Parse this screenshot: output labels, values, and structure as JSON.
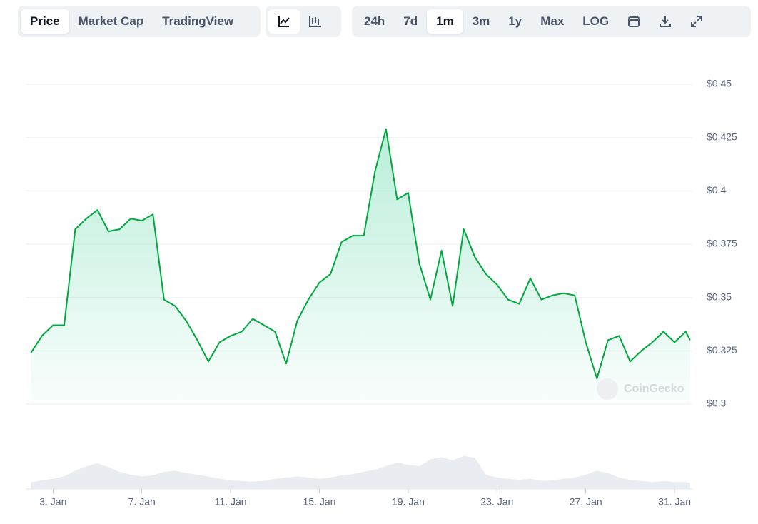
{
  "toolbar": {
    "views": [
      "Price",
      "Market Cap",
      "TradingView"
    ],
    "ranges": [
      "24h",
      "7d",
      "1m",
      "3m",
      "1y",
      "Max",
      "LOG"
    ]
  },
  "chart_data": {
    "type": "line",
    "watermark": "CoinGecko",
    "x": [
      2,
      2.5,
      3,
      3.5,
      4,
      4.5,
      5,
      5.5,
      6,
      6.5,
      7,
      7.5,
      8,
      8.5,
      9,
      9.5,
      10,
      10.5,
      11,
      11.5,
      12,
      12.5,
      13,
      13.5,
      14,
      14.5,
      15,
      15.5,
      16,
      16.5,
      17,
      17.5,
      18,
      18.5,
      19,
      19.5,
      20,
      20.5,
      21,
      21.5,
      22,
      22.5,
      23,
      23.5,
      24,
      24.5,
      25,
      25.5,
      26,
      26.5,
      27,
      27.5,
      28,
      28.5,
      29,
      29.5,
      30,
      30.5,
      31,
      31.5,
      31.7
    ],
    "series": [
      {
        "color": "#00a83e",
        "values": [
          0.324,
          0.332,
          0.337,
          0.337,
          0.382,
          0.387,
          0.391,
          0.381,
          0.382,
          0.387,
          0.386,
          0.389,
          0.349,
          0.346,
          0.339,
          0.33,
          0.32,
          0.329,
          0.332,
          0.334,
          0.34,
          0.337,
          0.334,
          0.319,
          0.339,
          0.349,
          0.357,
          0.361,
          0.376,
          0.379,
          0.379,
          0.409,
          0.429,
          0.396,
          0.399,
          0.366,
          0.349,
          0.372,
          0.346,
          0.382,
          0.369,
          0.361,
          0.356,
          0.349,
          0.347,
          0.359,
          0.349,
          0.351,
          0.352,
          0.351,
          0.329,
          0.312,
          0.33,
          0.332,
          0.32,
          0.325,
          0.329,
          0.334,
          0.329,
          0.334,
          0.33
        ]
      },
      {
        "color": "#e9ecf0",
        "axis": "y2",
        "values": [
          12,
          15,
          18,
          22,
          32,
          40,
          45,
          38,
          30,
          25,
          22,
          24,
          30,
          32,
          28,
          25,
          22,
          18,
          15,
          14,
          13,
          14,
          18,
          20,
          22,
          20,
          18,
          20,
          24,
          26,
          30,
          34,
          40,
          46,
          42,
          40,
          52,
          56,
          50,
          58,
          55,
          25,
          20,
          18,
          16,
          18,
          14,
          15,
          18,
          20,
          25,
          32,
          28,
          20,
          16,
          14,
          12,
          14,
          12,
          12,
          11
        ]
      }
    ],
    "xlim": [
      1.8,
      31.8
    ],
    "xticks": [
      {
        "value": 3,
        "label": "3. Jan"
      },
      {
        "value": 7,
        "label": "7. Jan"
      },
      {
        "value": 11,
        "label": "11. Jan"
      },
      {
        "value": 15,
        "label": "15. Jan"
      },
      {
        "value": 19,
        "label": "19. Jan"
      },
      {
        "value": 23,
        "label": "23. Jan"
      },
      {
        "value": 27,
        "label": "27. Jan"
      },
      {
        "value": 31,
        "label": "31. Jan"
      }
    ],
    "ylim": [
      0.3,
      0.45
    ],
    "yticks": [
      {
        "value": 0.3,
        "label": "$0.3"
      },
      {
        "value": 0.325,
        "label": "$0.325"
      },
      {
        "value": 0.35,
        "label": "$0.35"
      },
      {
        "value": 0.375,
        "label": "$0.375"
      },
      {
        "value": 0.4,
        "label": "$0.4"
      },
      {
        "value": 0.425,
        "label": "$0.425"
      },
      {
        "value": 0.45,
        "label": "$0.45"
      }
    ],
    "y2lim": [
      0,
      100
    ],
    "grid": true
  }
}
